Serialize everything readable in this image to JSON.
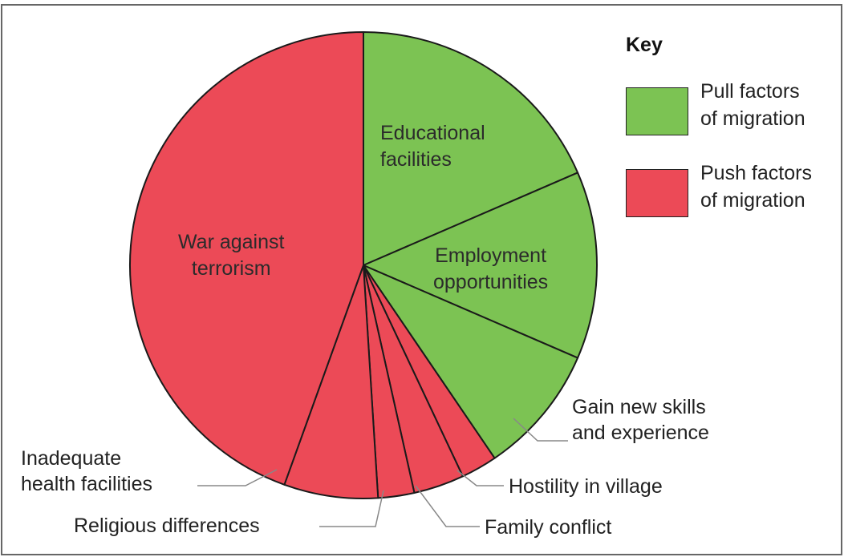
{
  "chart_data": {
    "type": "pie",
    "slices": [
      {
        "label": "Educational facilities",
        "value": 18.5,
        "factor": "pull"
      },
      {
        "label": "Employment opportunities",
        "value": 13.0,
        "factor": "pull"
      },
      {
        "label": "Gain new skills and experience",
        "value": 9.0,
        "factor": "pull"
      },
      {
        "label": "Hostility in village",
        "value": 2.5,
        "factor": "push"
      },
      {
        "label": "Family conflict",
        "value": 3.5,
        "factor": "push"
      },
      {
        "label": "Religious differences",
        "value": 2.5,
        "factor": "push"
      },
      {
        "label": "Inadequate health facilities",
        "value": 6.5,
        "factor": "push"
      },
      {
        "label": "War against terrorism",
        "value": 44.5,
        "factor": "push"
      }
    ],
    "text_labels": {
      "educational": [
        "Educational",
        "facilities"
      ],
      "employment": [
        "Employment",
        "opportunities"
      ],
      "war": [
        "War against",
        "terrorism"
      ],
      "skills": [
        "Gain new skills",
        "and experience"
      ],
      "hostility": "Hostility in village",
      "family": "Family conflict",
      "religious": "Religious differences",
      "health": [
        "Inadequate",
        "health facilities"
      ]
    },
    "legend": {
      "title": "Key",
      "items": [
        {
          "label": [
            "Pull factors",
            "of migration"
          ],
          "color": "#7cc353"
        },
        {
          "label": [
            "Push factors",
            "of migration"
          ],
          "color": "#ec4a57"
        }
      ],
      "placement": "top-right"
    },
    "colors": {
      "pull": "#7cc353",
      "push": "#ec4a57",
      "stroke": "#1a1a1a",
      "leader": "#888888"
    }
  }
}
